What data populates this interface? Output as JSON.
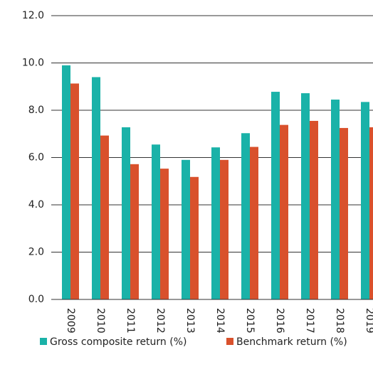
{
  "chart_data": {
    "type": "bar",
    "categories": [
      "2009",
      "2010",
      "2011",
      "2012",
      "2013",
      "2014",
      "2015",
      "2016",
      "2017",
      "2018",
      "2019"
    ],
    "series": [
      {
        "name": "Gross composite return (%)",
        "color": "#1ab2a8",
        "values": [
          9.9,
          9.4,
          7.28,
          6.55,
          5.9,
          6.43,
          7.03,
          8.78,
          8.72,
          8.45,
          8.35
        ]
      },
      {
        "name": "Benchmark return (%)",
        "color": "#d9512c",
        "values": [
          9.13,
          6.93,
          5.72,
          5.53,
          5.18,
          5.9,
          6.45,
          7.38,
          7.55,
          7.25,
          7.28
        ]
      }
    ],
    "ylim": [
      0,
      12
    ],
    "yticks": [
      {
        "value": 0,
        "label": "0.0"
      },
      {
        "value": 2,
        "label": "2.0"
      },
      {
        "value": 4,
        "label": "4.0"
      },
      {
        "value": 6,
        "label": "6.0"
      },
      {
        "value": 8,
        "label": "8.0"
      },
      {
        "value": 10,
        "label": "10.0"
      },
      {
        "value": 12,
        "label": "12.0"
      }
    ],
    "grid": true
  }
}
